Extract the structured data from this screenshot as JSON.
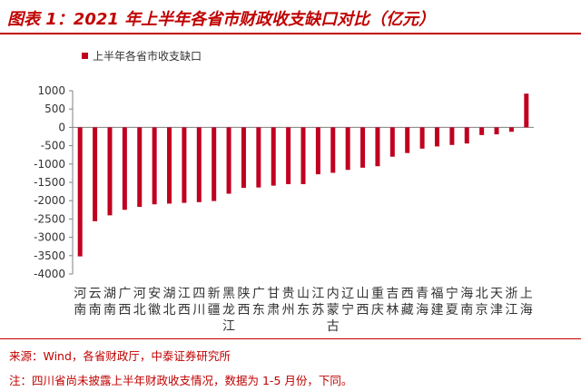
{
  "title": "图表 1：2021 年上半年各省市财政收支缺口对比（亿元）",
  "source": "来源：Wind，各省财政厅，中泰证券研究所",
  "note": "注：四川省尚未披露上半年财政收支情况，数据为 1-5 月份，下同。",
  "colors": {
    "accent": "#c00000",
    "bar": "#c00020",
    "axis": "#808080",
    "text": "#333333"
  },
  "chart_data": {
    "type": "bar",
    "legend": "上半年各省市收支缺口",
    "legend_position": "top-left",
    "categories": [
      "河南",
      "云南",
      "湖南",
      "广西",
      "河北",
      "安徽",
      "湖北",
      "江西",
      "四川",
      "新疆",
      "黑龙江",
      "陕西",
      "广东",
      "甘肃",
      "贵州",
      "山东",
      "江苏",
      "内蒙古",
      "辽宁",
      "山西",
      "重庆",
      "吉林",
      "西藏",
      "青海",
      "福建",
      "宁夏",
      "海南",
      "北京",
      "天津",
      "浙江",
      "上海"
    ],
    "values": [
      -3520,
      -2560,
      -2400,
      -2250,
      -2170,
      -2100,
      -2080,
      -2060,
      -2040,
      -2010,
      -1810,
      -1650,
      -1640,
      -1590,
      -1550,
      -1550,
      -1280,
      -1240,
      -1160,
      -1100,
      -1060,
      -800,
      -700,
      -580,
      -520,
      -480,
      -440,
      -210,
      -190,
      -120,
      920
    ],
    "ylim": [
      -4000,
      1000
    ],
    "yticks": [
      1000,
      500,
      0,
      -500,
      -1000,
      -1500,
      -2000,
      -2500,
      -3000,
      -3500,
      -4000
    ],
    "grid": false
  }
}
